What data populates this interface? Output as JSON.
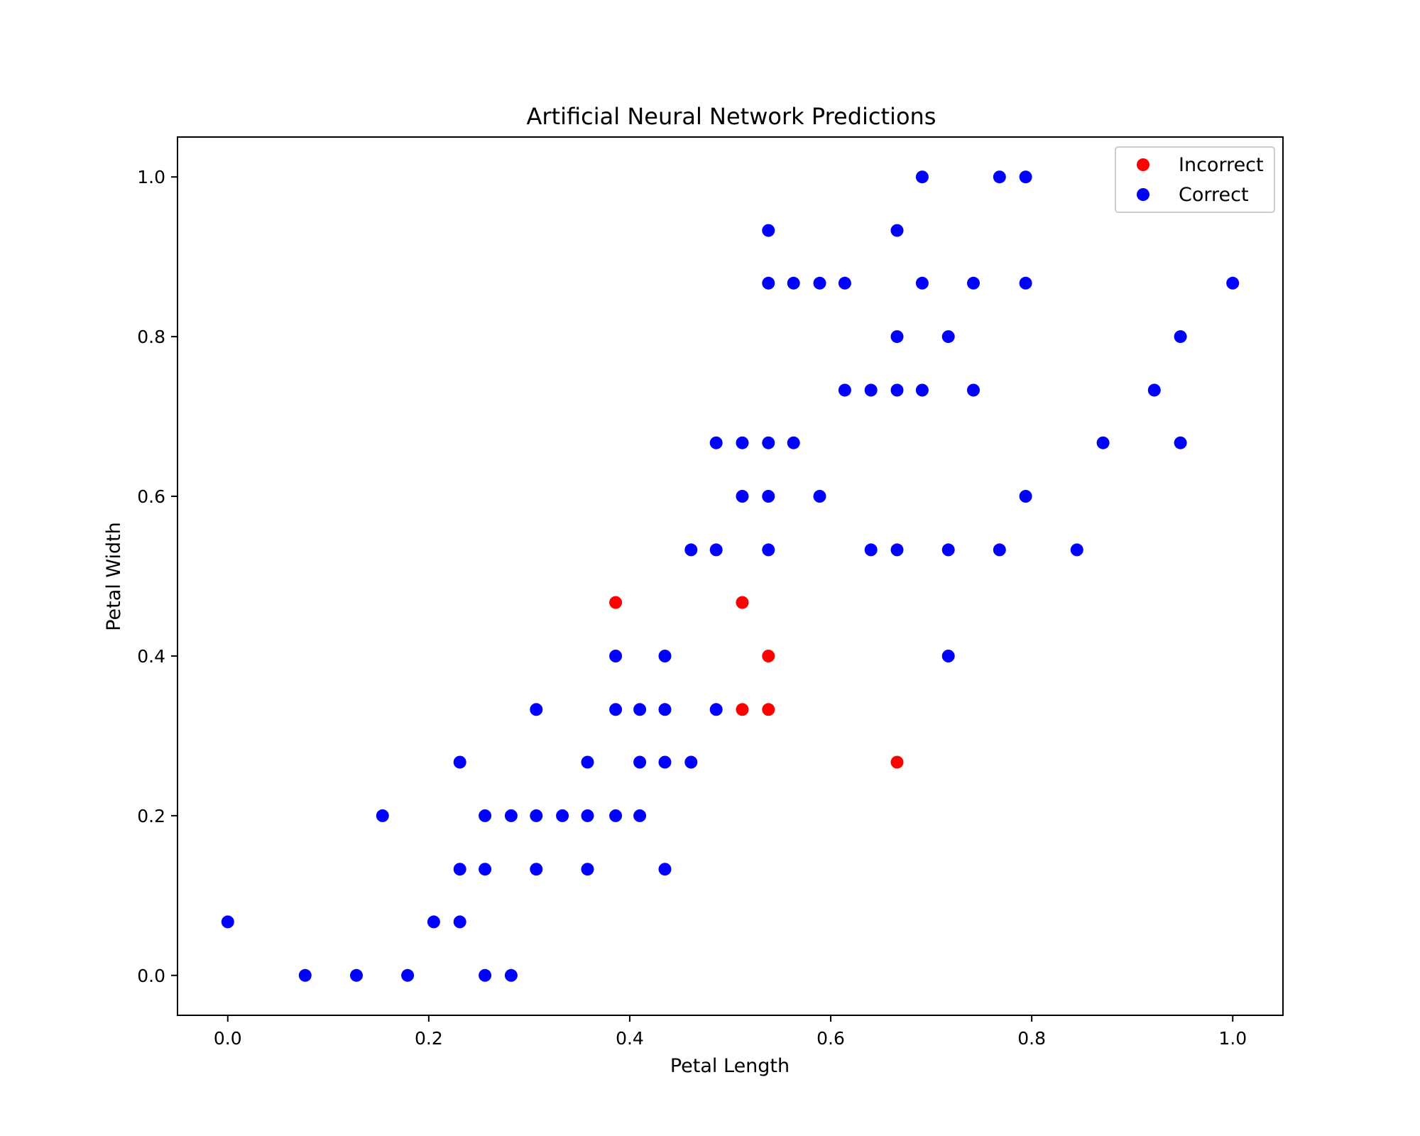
{
  "chart_data": {
    "type": "scatter",
    "title": "Artificial Neural Network Predictions",
    "xlabel": "Petal Length",
    "ylabel": "Petal Width",
    "xlim": [
      -0.05,
      1.05
    ],
    "ylim": [
      -0.05,
      1.05
    ],
    "xticks": [
      "0.0",
      "0.2",
      "0.4",
      "0.6",
      "0.8",
      "1.0"
    ],
    "yticks": [
      "0.0",
      "0.2",
      "0.4",
      "0.6",
      "0.8",
      "1.0"
    ],
    "grid": false,
    "legend_position": "top-right",
    "series": [
      {
        "name": "Incorrect",
        "color": "#ff0000",
        "points": [
          [
            0.386,
            0.467
          ],
          [
            0.512,
            0.467
          ],
          [
            0.538,
            0.4
          ],
          [
            0.512,
            0.333
          ],
          [
            0.538,
            0.333
          ],
          [
            0.666,
            0.267
          ]
        ]
      },
      {
        "name": "Correct",
        "color": "#0000ff",
        "points": [
          [
            0.691,
            1.0
          ],
          [
            0.768,
            1.0
          ],
          [
            0.794,
            1.0
          ],
          [
            0.538,
            0.933
          ],
          [
            0.666,
            0.933
          ],
          [
            0.538,
            0.867
          ],
          [
            0.563,
            0.867
          ],
          [
            0.589,
            0.867
          ],
          [
            0.614,
            0.867
          ],
          [
            0.691,
            0.867
          ],
          [
            0.742,
            0.867
          ],
          [
            0.794,
            0.867
          ],
          [
            1.0,
            0.867
          ],
          [
            0.666,
            0.8
          ],
          [
            0.717,
            0.8
          ],
          [
            0.948,
            0.8
          ],
          [
            0.614,
            0.733
          ],
          [
            0.64,
            0.733
          ],
          [
            0.666,
            0.733
          ],
          [
            0.691,
            0.733
          ],
          [
            0.742,
            0.733
          ],
          [
            0.922,
            0.733
          ],
          [
            0.486,
            0.667
          ],
          [
            0.512,
            0.667
          ],
          [
            0.538,
            0.667
          ],
          [
            0.563,
            0.667
          ],
          [
            0.871,
            0.667
          ],
          [
            0.948,
            0.667
          ],
          [
            0.512,
            0.6
          ],
          [
            0.538,
            0.6
          ],
          [
            0.589,
            0.6
          ],
          [
            0.794,
            0.6
          ],
          [
            0.461,
            0.533
          ],
          [
            0.486,
            0.533
          ],
          [
            0.538,
            0.533
          ],
          [
            0.64,
            0.533
          ],
          [
            0.666,
            0.533
          ],
          [
            0.717,
            0.533
          ],
          [
            0.768,
            0.533
          ],
          [
            0.845,
            0.533
          ],
          [
            0.386,
            0.4
          ],
          [
            0.435,
            0.4
          ],
          [
            0.717,
            0.4
          ],
          [
            0.307,
            0.333
          ],
          [
            0.386,
            0.333
          ],
          [
            0.41,
            0.333
          ],
          [
            0.435,
            0.333
          ],
          [
            0.486,
            0.333
          ],
          [
            0.231,
            0.267
          ],
          [
            0.358,
            0.267
          ],
          [
            0.41,
            0.267
          ],
          [
            0.435,
            0.267
          ],
          [
            0.461,
            0.267
          ],
          [
            0.154,
            0.2
          ],
          [
            0.256,
            0.2
          ],
          [
            0.282,
            0.2
          ],
          [
            0.307,
            0.2
          ],
          [
            0.333,
            0.2
          ],
          [
            0.358,
            0.2
          ],
          [
            0.386,
            0.2
          ],
          [
            0.41,
            0.2
          ],
          [
            0.231,
            0.133
          ],
          [
            0.256,
            0.133
          ],
          [
            0.307,
            0.133
          ],
          [
            0.358,
            0.133
          ],
          [
            0.435,
            0.133
          ],
          [
            0.0,
            0.067
          ],
          [
            0.205,
            0.067
          ],
          [
            0.231,
            0.067
          ],
          [
            0.077,
            0.0
          ],
          [
            0.128,
            0.0
          ],
          [
            0.179,
            0.0
          ],
          [
            0.256,
            0.0
          ],
          [
            0.282,
            0.0
          ]
        ]
      }
    ]
  }
}
